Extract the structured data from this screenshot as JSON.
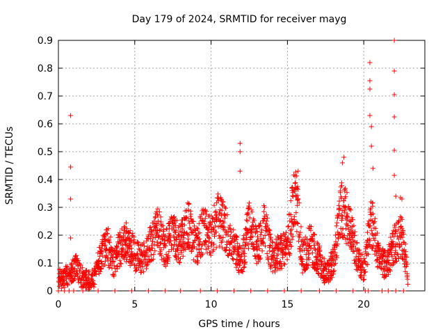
{
  "chart_data": {
    "type": "scatter",
    "title": "Day 179 of 2024, SRMTID for receiver mayg",
    "xlabel": "GPS time / hours",
    "ylabel": "SRMTID / TECUs",
    "xlim": [
      0,
      24
    ],
    "ylim": [
      0,
      0.9
    ],
    "xticks": [
      0,
      5,
      10,
      15,
      20
    ],
    "xtick_labels": [
      "0",
      "5",
      "10",
      "15",
      "20"
    ],
    "yticks": [
      0,
      0.1,
      0.2,
      0.3,
      0.4,
      0.5,
      0.6,
      0.7,
      0.8,
      0.9
    ],
    "ytick_labels": [
      "0",
      "0.1",
      "0.2",
      "0.3",
      "0.4",
      "0.5",
      "0.6",
      "0.7",
      "0.8",
      "0.9"
    ],
    "grid": true,
    "marker": "+",
    "series": [
      {
        "name": "SRMTID",
        "color": "#ff0000",
        "profile": [
          [
            0.0,
            0.045
          ],
          [
            0.3,
            0.04
          ],
          [
            0.6,
            0.06
          ],
          [
            0.9,
            0.07
          ],
          [
            1.2,
            0.09
          ],
          [
            1.5,
            0.05
          ],
          [
            2.0,
            0.04
          ],
          [
            2.4,
            0.05
          ],
          [
            2.8,
            0.13
          ],
          [
            3.2,
            0.17
          ],
          [
            3.6,
            0.1
          ],
          [
            4.0,
            0.15
          ],
          [
            4.5,
            0.18
          ],
          [
            5.0,
            0.13
          ],
          [
            5.5,
            0.12
          ],
          [
            6.0,
            0.16
          ],
          [
            6.5,
            0.22
          ],
          [
            7.0,
            0.15
          ],
          [
            7.5,
            0.2
          ],
          [
            8.0,
            0.17
          ],
          [
            8.5,
            0.24
          ],
          [
            9.0,
            0.15
          ],
          [
            9.5,
            0.22
          ],
          [
            10.0,
            0.2
          ],
          [
            10.5,
            0.26
          ],
          [
            11.0,
            0.22
          ],
          [
            11.5,
            0.16
          ],
          [
            12.0,
            0.1
          ],
          [
            12.5,
            0.24
          ],
          [
            13.0,
            0.15
          ],
          [
            13.5,
            0.23
          ],
          [
            14.0,
            0.12
          ],
          [
            14.5,
            0.14
          ],
          [
            15.0,
            0.15
          ],
          [
            15.5,
            0.36
          ],
          [
            16.0,
            0.12
          ],
          [
            16.5,
            0.17
          ],
          [
            17.0,
            0.12
          ],
          [
            17.5,
            0.06
          ],
          [
            18.0,
            0.1
          ],
          [
            18.5,
            0.3
          ],
          [
            19.0,
            0.25
          ],
          [
            19.5,
            0.13
          ],
          [
            20.0,
            0.08
          ],
          [
            20.5,
            0.25
          ],
          [
            21.0,
            0.12
          ],
          [
            21.5,
            0.09
          ],
          [
            22.0,
            0.17
          ],
          [
            22.5,
            0.2
          ],
          [
            22.9,
            0.05
          ]
        ],
        "spikes": [
          [
            0.8,
            0.63
          ],
          [
            0.8,
            0.445
          ],
          [
            0.8,
            0.33
          ],
          [
            0.8,
            0.19
          ],
          [
            11.9,
            0.53
          ],
          [
            11.9,
            0.5
          ],
          [
            11.9,
            0.43
          ],
          [
            15.7,
            0.43
          ],
          [
            18.7,
            0.48
          ],
          [
            18.6,
            0.46
          ],
          [
            20.4,
            0.82
          ],
          [
            20.4,
            0.755
          ],
          [
            20.4,
            0.725
          ],
          [
            20.4,
            0.63
          ],
          [
            20.5,
            0.59
          ],
          [
            20.5,
            0.52
          ],
          [
            20.6,
            0.44
          ],
          [
            22.0,
            0.9
          ],
          [
            22.0,
            0.79
          ],
          [
            22.0,
            0.705
          ],
          [
            22.0,
            0.625
          ],
          [
            22.0,
            0.505
          ],
          [
            22.0,
            0.415
          ],
          [
            22.1,
            0.34
          ],
          [
            22.4,
            0.335
          ],
          [
            22.5,
            0.33
          ],
          [
            22.3,
            0.25
          ]
        ],
        "zero_points": [
          0.0,
          0.4,
          0.7,
          1.0,
          1.6,
          2.6,
          3.7,
          4.8,
          5.9,
          7.0,
          8.0,
          9.3,
          10.4,
          11.5,
          12.6,
          13.7,
          14.8,
          15.9,
          17.1,
          18.2,
          19.3,
          20.1,
          20.3,
          21.2,
          21.6,
          22.1,
          22.6
        ]
      }
    ]
  }
}
